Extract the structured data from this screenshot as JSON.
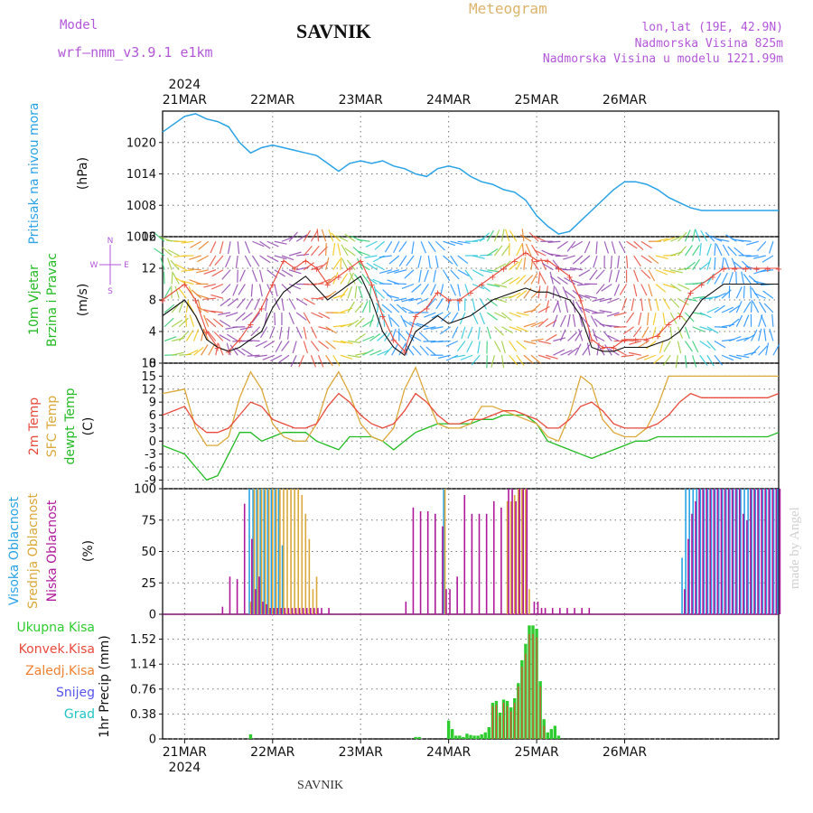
{
  "header": {
    "model_label": "Model",
    "model_name": "wrf–nmm_v3.9.1  e1km",
    "station": "SAVNIK",
    "title": "Meteogram",
    "location": "lon,lat (19E, 42.9N)",
    "altitude": "Nadmorska Visina 825m",
    "model_altitude": "Nadmorska Visina u modelu 1221.99m"
  },
  "footer": {
    "station": "SAVNIK",
    "watermark": "made by Angel"
  },
  "colors": {
    "pressure": "#29a3e6",
    "temp2m": "#e84a3c",
    "sfc_temp": "#dba83a",
    "dewpoint": "#22bb22",
    "high_cloud": "#29a3e6",
    "mid_cloud": "#dba83a",
    "low_cloud": "#b0189b",
    "precip": "#2ecc2e",
    "convective": "#e84a3c",
    "title_model": "#b357d9",
    "title_meteogram": "#dcb36a"
  },
  "chart_data": [
    {
      "type": "line",
      "panel": "pressure",
      "ylabel_lines": [
        "Pritisak na nivou mora",
        "(hPa)"
      ],
      "yticks": [
        "1002",
        "1008",
        "1014",
        "1020"
      ],
      "ylim": [
        1002,
        1026
      ],
      "x_top_year": "2024",
      "x_top_ticks": [
        "21MAR",
        "22MAR",
        "23MAR",
        "24MAR",
        "25MAR",
        "26MAR"
      ],
      "x_hours": [
        -6,
        0,
        3,
        6,
        9,
        12,
        15,
        18,
        21,
        24,
        27,
        30,
        33,
        36,
        39,
        42,
        45,
        48,
        51,
        54,
        57,
        60,
        63,
        66,
        69,
        72,
        75,
        78,
        81,
        84,
        87,
        90,
        93,
        96,
        99,
        102,
        105,
        108,
        111,
        114,
        117,
        120,
        123,
        126,
        129,
        132,
        135,
        138,
        141,
        144,
        147,
        150,
        153,
        156,
        159,
        162
      ],
      "series": [
        {
          "values": [
            1022,
            1025,
            1025.5,
            1024.5,
            1024,
            1023,
            1020,
            1018,
            1019,
            1019.5,
            1019,
            1018.5,
            1018,
            1017.5,
            1016,
            1014.5,
            1016,
            1016.5,
            1016,
            1016.5,
            1015.5,
            1015,
            1014,
            1013.5,
            1015,
            1015.5,
            1015,
            1013.5,
            1012.5,
            1012,
            1011,
            1010.5,
            1009,
            1006,
            1004,
            1002.5,
            1003,
            1005,
            1007,
            1009,
            1011,
            1012.5,
            1012.5,
            1012,
            1011,
            1009.5,
            1008.5,
            1007.5,
            1007,
            1007,
            1007,
            1007,
            1007,
            1007,
            1007,
            1007
          ]
        }
      ]
    },
    {
      "type": "line",
      "panel": "wind",
      "ylabel_lines": [
        "10m Vjetar",
        "Brzina i Pravac",
        "(m/s)"
      ],
      "legend_compass": [
        "N",
        "W",
        "E",
        "S"
      ],
      "yticks": [
        "0",
        "4",
        "8",
        "12",
        "16"
      ],
      "ylim": [
        0,
        16
      ],
      "x_hours": [
        -6,
        0,
        3,
        6,
        9,
        12,
        15,
        18,
        21,
        24,
        27,
        30,
        33,
        36,
        39,
        42,
        45,
        48,
        51,
        54,
        57,
        60,
        63,
        66,
        69,
        72,
        75,
        78,
        81,
        84,
        87,
        90,
        93,
        96,
        99,
        102,
        105,
        108,
        111,
        114,
        117,
        120,
        123,
        126,
        129,
        132,
        135,
        138,
        141,
        144,
        147,
        150,
        153,
        156,
        159,
        162
      ],
      "series": [
        {
          "name": "speed",
          "values": [
            6,
            8,
            6,
            3,
            2,
            1.5,
            2,
            3,
            4,
            7,
            9,
            10,
            11,
            9.5,
            8,
            9,
            10,
            11,
            8,
            4,
            2,
            1,
            4,
            5,
            6,
            5,
            5.5,
            6,
            7,
            8,
            8.5,
            9,
            9.5,
            9,
            9,
            8.5,
            8,
            6,
            2,
            1.5,
            1.5,
            2,
            2,
            2,
            2.5,
            3,
            4,
            6,
            8,
            9,
            10,
            10,
            10,
            10,
            10,
            10
          ]
        },
        {
          "name": "gust",
          "values": [
            8,
            10,
            8,
            4,
            2,
            1.5,
            3,
            5,
            7,
            10,
            13,
            12,
            13,
            12,
            10,
            11,
            12,
            13,
            10,
            6,
            3,
            1.5,
            6,
            7,
            9,
            8,
            8,
            9,
            10,
            11,
            12,
            13,
            14,
            13,
            13,
            12,
            11,
            8,
            3,
            2,
            2,
            3,
            3,
            3,
            3.5,
            5,
            6,
            9,
            10,
            11,
            12,
            12,
            12,
            12,
            12,
            12
          ]
        }
      ]
    },
    {
      "type": "line",
      "panel": "temperature",
      "ylabel_lines": [
        "2m Temp",
        "SFC Temp",
        "dewpt Temp",
        "(C)"
      ],
      "yticks": [
        "-9",
        "-6",
        "-3",
        "0",
        "3",
        "6",
        "9",
        "12",
        "15",
        "18"
      ],
      "ylim": [
        -11,
        18
      ],
      "x_hours": [
        -6,
        0,
        3,
        6,
        9,
        12,
        15,
        18,
        21,
        24,
        27,
        30,
        33,
        36,
        39,
        42,
        45,
        48,
        51,
        54,
        57,
        60,
        63,
        66,
        69,
        72,
        75,
        78,
        81,
        84,
        87,
        90,
        93,
        96,
        99,
        102,
        105,
        108,
        111,
        114,
        117,
        120,
        123,
        126,
        129,
        132,
        135,
        138,
        141,
        144,
        147,
        150,
        153,
        156,
        159,
        162
      ],
      "series": [
        {
          "name": "2m Temp",
          "values": [
            6,
            8,
            4,
            2,
            2,
            3,
            6,
            9,
            8,
            5,
            4,
            3,
            3,
            4,
            8,
            11,
            9,
            6,
            4,
            3,
            4,
            7,
            11,
            9,
            6,
            4,
            4,
            5,
            5,
            6,
            7,
            7,
            6,
            5,
            3,
            3,
            5,
            8,
            9,
            7,
            4,
            3,
            3,
            3,
            4,
            6,
            9,
            11,
            10,
            10,
            10,
            10,
            10,
            10,
            10,
            11
          ]
        },
        {
          "name": "SFC Temp",
          "values": [
            11,
            12,
            3,
            -1,
            -1,
            1,
            10,
            16,
            12,
            4,
            1,
            0,
            0,
            4,
            12,
            16,
            11,
            4,
            1,
            0,
            3,
            12,
            17,
            10,
            4,
            3,
            3,
            4,
            8,
            8,
            7,
            6,
            5,
            4,
            1,
            0,
            6,
            15,
            13,
            5,
            2,
            1,
            1,
            3,
            8,
            15,
            15,
            15,
            15,
            15,
            15,
            15,
            15,
            15,
            15,
            15
          ]
        },
        {
          "name": "dewpt Temp",
          "values": [
            -1,
            -3,
            -6,
            -9,
            -8,
            -3,
            2,
            2,
            0,
            1,
            2,
            2,
            2,
            0,
            -1,
            -2,
            1,
            1,
            1,
            0,
            -2,
            0,
            2,
            3,
            4,
            4,
            4,
            4,
            5,
            5,
            6,
            6,
            6,
            4,
            0,
            -1,
            -2,
            -3,
            -4,
            -3,
            -2,
            -1,
            0,
            0,
            1,
            1,
            1,
            1,
            1,
            1,
            1,
            1,
            1,
            1,
            1,
            2
          ]
        }
      ]
    },
    {
      "type": "bar",
      "panel": "clouds",
      "ylabel_lines": [
        "Visoka Oblacnost",
        "Srednja Oblacnost",
        "Niska Oblacnost",
        "(%)"
      ],
      "yticks": [
        "0",
        "25",
        "50",
        "75",
        "100"
      ],
      "ylim": [
        0,
        100
      ],
      "bar_hours": [
        10,
        12,
        14,
        16,
        18,
        19,
        20,
        21,
        22,
        23,
        24,
        25,
        26,
        27,
        28,
        29,
        30,
        31,
        32,
        33,
        34,
        35,
        36,
        37,
        39,
        60,
        62,
        64,
        66,
        68,
        70,
        71,
        72,
        74,
        76,
        78,
        80,
        82,
        84,
        86,
        88,
        89,
        90,
        91,
        92,
        93,
        94,
        95,
        96,
        97,
        98,
        100,
        102,
        104,
        106,
        108,
        110,
        136,
        137,
        138,
        139,
        140,
        141,
        142,
        143,
        144,
        145,
        146,
        147,
        148,
        149,
        150,
        151,
        152,
        153,
        154,
        155,
        156,
        157,
        158,
        159,
        160,
        161,
        162
      ],
      "series": [
        {
          "name": "Visoka",
          "values": [
            0,
            0,
            0,
            0,
            100,
            100,
            100,
            100,
            100,
            100,
            100,
            100,
            100,
            55,
            0,
            0,
            0,
            0,
            0,
            0,
            0,
            0,
            0,
            0,
            0,
            0,
            0,
            0,
            0,
            0,
            0,
            100,
            0,
            0,
            0,
            0,
            0,
            0,
            0,
            0,
            0,
            0,
            0,
            0,
            0,
            0,
            0,
            0,
            0,
            0,
            0,
            0,
            0,
            0,
            0,
            0,
            0,
            45,
            100,
            100,
            100,
            100,
            100,
            100,
            100,
            100,
            100,
            100,
            100,
            100,
            100,
            100,
            100,
            100,
            100,
            100,
            100,
            100,
            100,
            100,
            100,
            100,
            100,
            100
          ]
        },
        {
          "name": "Srednja",
          "values": [
            0,
            0,
            0,
            0,
            10,
            100,
            100,
            100,
            100,
            100,
            100,
            100,
            100,
            100,
            100,
            100,
            100,
            100,
            95,
            80,
            60,
            20,
            30,
            0,
            0,
            0,
            0,
            0,
            0,
            0,
            0,
            100,
            0,
            0,
            0,
            0,
            0,
            0,
            0,
            0,
            90,
            90,
            95,
            100,
            100,
            100,
            20,
            0,
            0,
            0,
            0,
            0,
            0,
            0,
            0,
            0,
            0,
            0,
            0,
            0,
            0,
            0,
            0,
            0,
            0,
            0,
            0,
            0,
            0,
            0,
            0,
            0,
            0,
            0,
            0,
            0,
            0,
            0,
            0,
            0,
            0,
            0,
            0,
            0
          ]
        },
        {
          "name": "Niska",
          "values": [
            6,
            30,
            28,
            88,
            60,
            20,
            30,
            10,
            8,
            5,
            5,
            5,
            5,
            5,
            5,
            5,
            5,
            5,
            5,
            5,
            5,
            5,
            5,
            5,
            5,
            10,
            85,
            82,
            82,
            80,
            70,
            20,
            20,
            30,
            95,
            80,
            80,
            80,
            90,
            85,
            100,
            100,
            90,
            100,
            100,
            100,
            0,
            10,
            10,
            5,
            5,
            5,
            5,
            5,
            5,
            5,
            5,
            20,
            60,
            80,
            90,
            100,
            100,
            100,
            100,
            100,
            100,
            100,
            100,
            100,
            100,
            100,
            100,
            80,
            75,
            100,
            100,
            100,
            100,
            100,
            100,
            100,
            100,
            100
          ]
        }
      ]
    },
    {
      "type": "bar",
      "panel": "precip",
      "ylabel_lines": [
        "1hr Precip (mm)"
      ],
      "legend": [
        "Ukupna  Kisa",
        "Konvek.Kisa",
        "Zaledj.Kisa",
        "Snijeg",
        "Grad"
      ],
      "legend_colors": [
        "#2ecc2e",
        "#e84a3c",
        "#f08030",
        "#5555ee",
        "#22c4c4"
      ],
      "yticks": [
        "0",
        "0.38",
        "0.76",
        "1.14",
        "1.52"
      ],
      "ylim": [
        0,
        1.9
      ],
      "x_bottom_ticks": [
        "21MAR",
        "22MAR",
        "23MAR",
        "24MAR",
        "25MAR",
        "26MAR"
      ],
      "x_bottom_year": "2024",
      "bar_hours": [
        18,
        63,
        64,
        72,
        73,
        74,
        75,
        76,
        77,
        78,
        79,
        80,
        81,
        82,
        83,
        84,
        85,
        86,
        87,
        88,
        89,
        90,
        91,
        92,
        93,
        94,
        95,
        96,
        97,
        98,
        99,
        100,
        101,
        102
      ],
      "series": [
        {
          "name": "Ukupna",
          "values": [
            0.07,
            0.03,
            0.03,
            0.28,
            0.15,
            0.05,
            0.05,
            0.03,
            0.08,
            0.06,
            0.05,
            0.05,
            0.07,
            0.1,
            0.18,
            0.55,
            0.58,
            0.4,
            0.6,
            0.58,
            0.48,
            0.62,
            0.85,
            1.2,
            1.45,
            1.73,
            1.73,
            1.68,
            0.88,
            0.3,
            0.1,
            0.15,
            0.2,
            0.05
          ]
        },
        {
          "name": "Konvek",
          "values": [
            0,
            0,
            0,
            0,
            0,
            0,
            0,
            0,
            0,
            0,
            0,
            0,
            0,
            0,
            0,
            0.5,
            0.52,
            0.35,
            0.55,
            0.5,
            0.42,
            0.55,
            0.8,
            1.1,
            1.3,
            1.6,
            1.6,
            1.55,
            0.8,
            0.2,
            0,
            0,
            0,
            0
          ]
        }
      ]
    }
  ]
}
